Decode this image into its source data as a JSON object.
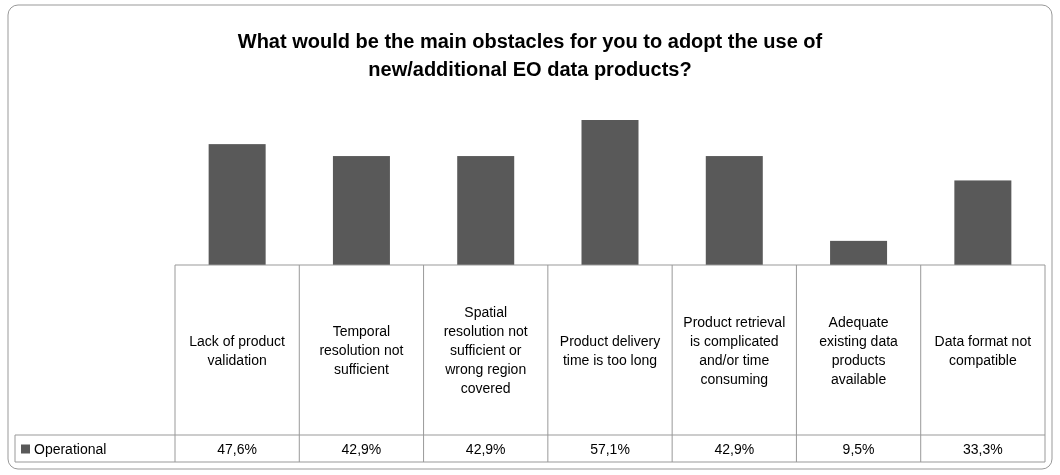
{
  "chart_data": {
    "type": "bar",
    "title": "What would be the main obstacles for you to adopt the use of new/additional EO data products?",
    "categories": [
      "Lack of product validation",
      "Temporal resolution not sufficient",
      "Spatial resolution not sufficient or wrong region covered",
      "Product delivery time is too long",
      "Product retrieval is complicated and/or time consuming",
      "Adequate existing data products available",
      "Data format not compatible"
    ],
    "series": [
      {
        "name": "Operational",
        "color": "#595959",
        "values": [
          47.6,
          42.9,
          42.9,
          57.1,
          42.9,
          9.5,
          33.3
        ],
        "value_labels": [
          "47,6%",
          "42,9%",
          "42,9%",
          "57,1%",
          "42,9%",
          "9,5%",
          "33,3%"
        ]
      }
    ],
    "legend": "bottom left"
  }
}
